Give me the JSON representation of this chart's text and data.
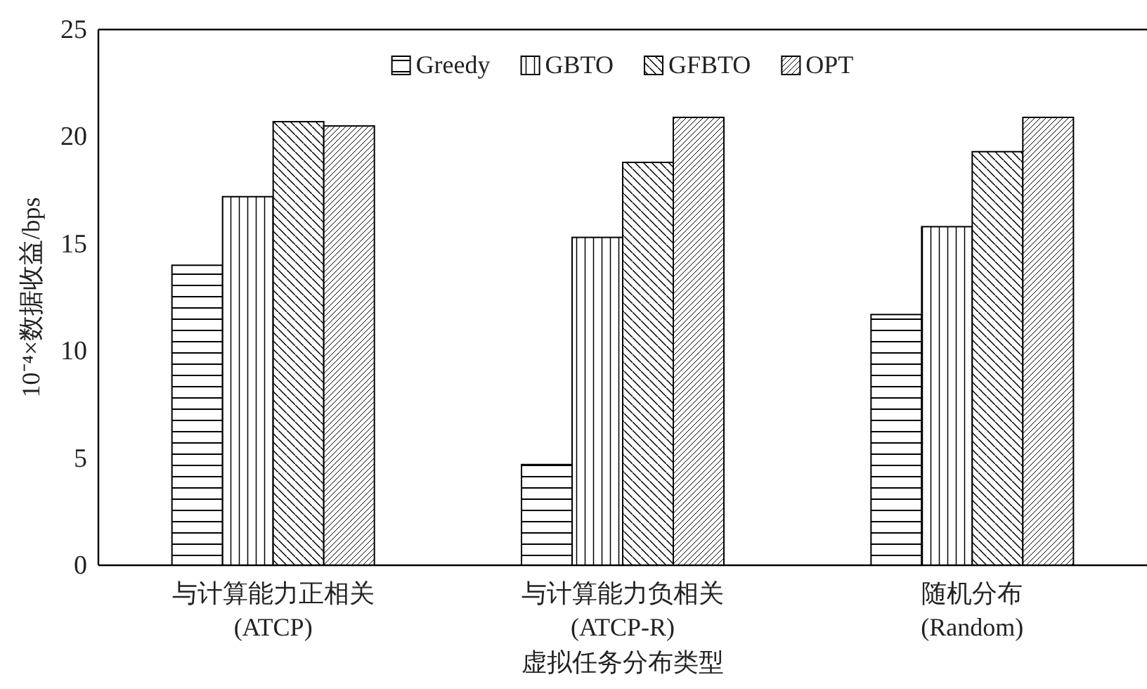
{
  "chart_data": {
    "type": "bar",
    "xlabel": "虚拟任务分布类型",
    "ylabel": "10⁻⁴×数据收益/bps",
    "categories": [
      "与计算能力正相关\n(ATCP)",
      "与计算能力负相关\n(ATCP-R)",
      "随机分布\n(Random)"
    ],
    "series": [
      {
        "name": "Greedy",
        "color": "#000000",
        "values": [
          14.0,
          4.7,
          11.7
        ]
      },
      {
        "name": "GBTO",
        "color": "#000000",
        "values": [
          17.2,
          15.3,
          15.8
        ]
      },
      {
        "name": "GFBTO",
        "color": "#000000",
        "values": [
          20.7,
          18.8,
          19.3
        ]
      },
      {
        "name": "OPT",
        "color": "#000000",
        "values": [
          20.5,
          20.9,
          20.9
        ]
      }
    ],
    "ylim": [
      0,
      25
    ],
    "yticks": [
      0,
      5,
      10,
      15,
      20,
      25
    ],
    "legend": "top",
    "grid": false
  }
}
